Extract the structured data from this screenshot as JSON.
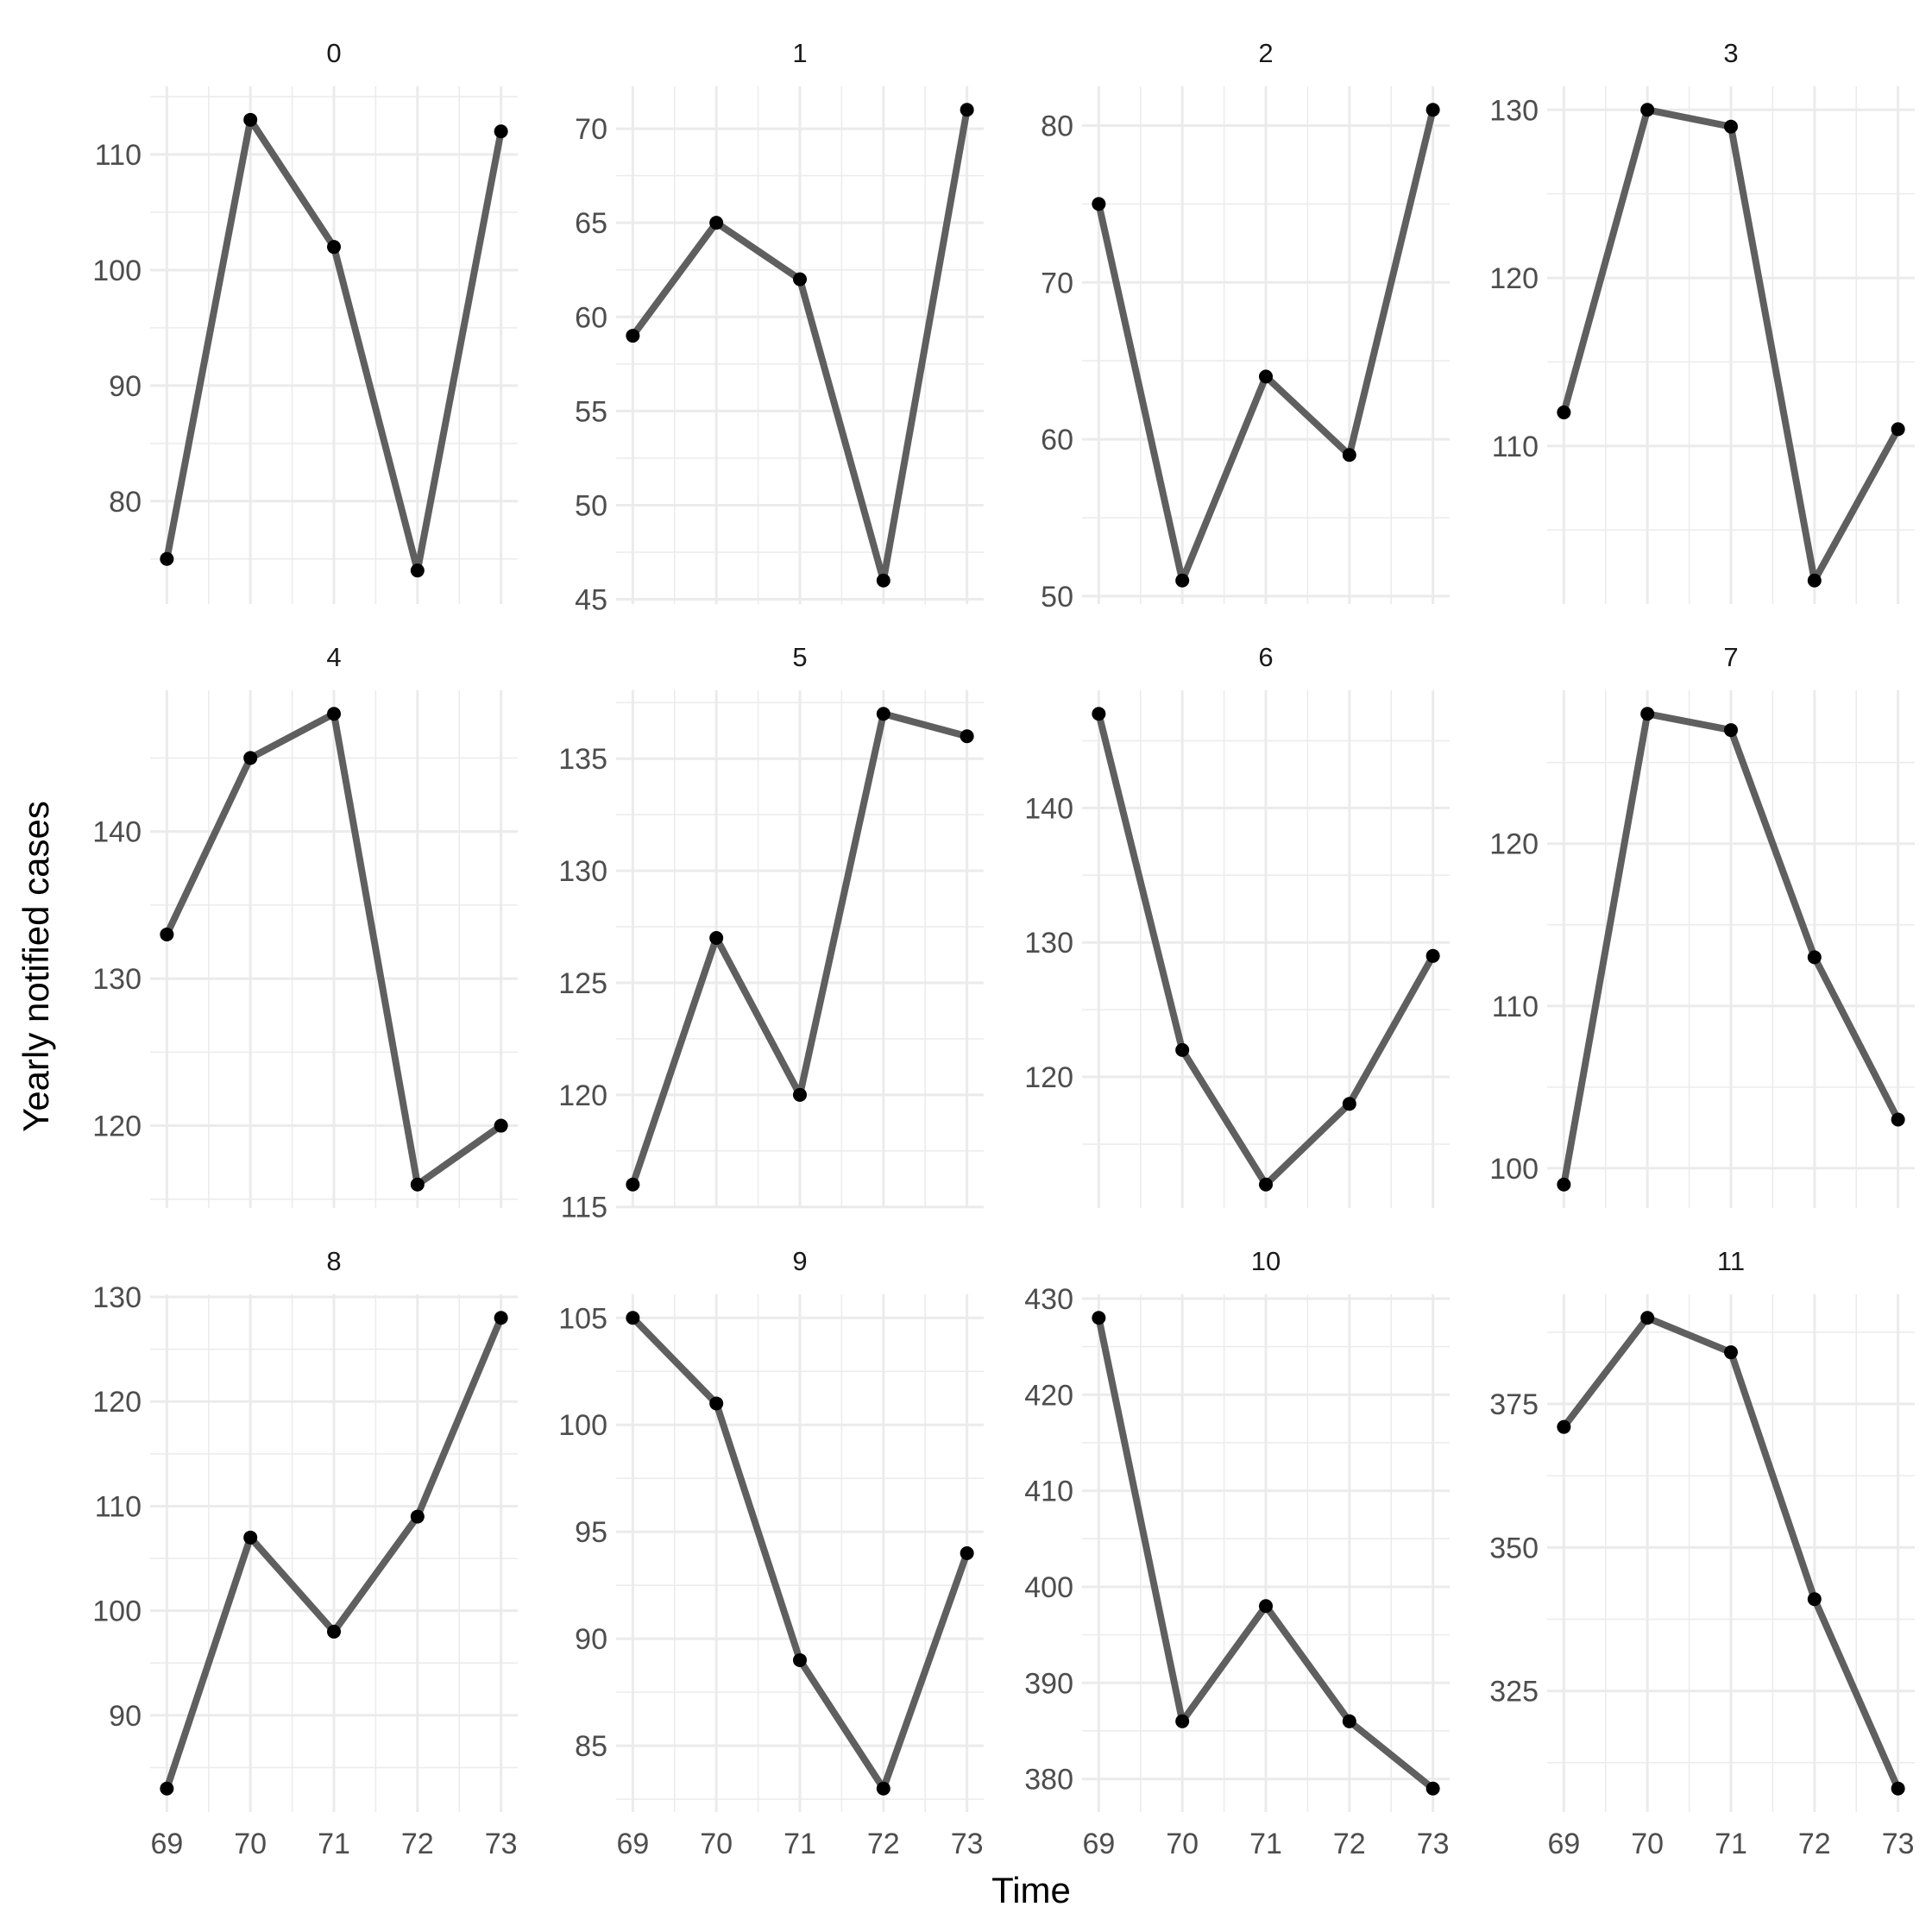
{
  "chart_data": {
    "type": "line",
    "layout": "facet-grid",
    "xlabel": "Time",
    "ylabel": "Yearly notified cases",
    "x": [
      69,
      70,
      71,
      72,
      73
    ],
    "x_ticks": [
      "69",
      "70",
      "71",
      "72",
      "73"
    ],
    "line_color": "#5f5f5f",
    "point_color": "#000000",
    "grid": true,
    "panels": [
      {
        "title": "0",
        "values": [
          75,
          113,
          102,
          74,
          112
        ],
        "ylim": [
          71.1,
          115.9
        ],
        "y_ticks": [
          80,
          90,
          100,
          110
        ]
      },
      {
        "title": "1",
        "values": [
          59,
          65,
          62,
          46,
          71
        ],
        "ylim": [
          44.75,
          72.25
        ],
        "y_ticks": [
          45,
          50,
          55,
          60,
          65,
          70
        ]
      },
      {
        "title": "2",
        "values": [
          75,
          51,
          64,
          59,
          81
        ],
        "ylim": [
          49.5,
          82.5
        ],
        "y_ticks": [
          50,
          60,
          70,
          80
        ]
      },
      {
        "title": "3",
        "values": [
          112,
          130,
          129,
          102,
          111
        ],
        "ylim": [
          100.6,
          131.4
        ],
        "y_ticks": [
          110,
          120,
          130
        ]
      },
      {
        "title": "4",
        "values": [
          133,
          145,
          148,
          116,
          120
        ],
        "ylim": [
          114.4,
          149.6
        ],
        "y_ticks": [
          120,
          130,
          140
        ]
      },
      {
        "title": "5",
        "values": [
          116,
          127,
          120,
          137,
          136
        ],
        "ylim": [
          114.95,
          138.05
        ],
        "y_ticks": [
          115,
          120,
          125,
          130,
          135
        ]
      },
      {
        "title": "6",
        "values": [
          147,
          122,
          112,
          118,
          129
        ],
        "ylim": [
          110.25,
          148.75
        ],
        "y_ticks": [
          120,
          130,
          140
        ]
      },
      {
        "title": "7",
        "values": [
          99,
          128,
          127,
          113,
          103
        ],
        "ylim": [
          97.55,
          129.45
        ],
        "y_ticks": [
          100,
          110,
          120
        ]
      },
      {
        "title": "8",
        "values": [
          83,
          107,
          98,
          109,
          128
        ],
        "ylim": [
          80.75,
          130.25
        ],
        "y_ticks": [
          90,
          100,
          110,
          120,
          130
        ]
      },
      {
        "title": "9",
        "values": [
          105,
          101,
          89,
          83,
          94
        ],
        "ylim": [
          81.9,
          106.1
        ],
        "y_ticks": [
          85,
          90,
          95,
          100,
          105
        ]
      },
      {
        "title": "10",
        "values": [
          428,
          386,
          398,
          386,
          379
        ],
        "ylim": [
          376.55,
          430.45
        ],
        "y_ticks": [
          380,
          390,
          400,
          410,
          420,
          430
        ]
      },
      {
        "title": "11",
        "values": [
          371,
          390,
          384,
          341,
          308
        ],
        "ylim": [
          303.9,
          394.1
        ],
        "y_ticks": [
          325,
          350,
          375
        ]
      }
    ]
  }
}
